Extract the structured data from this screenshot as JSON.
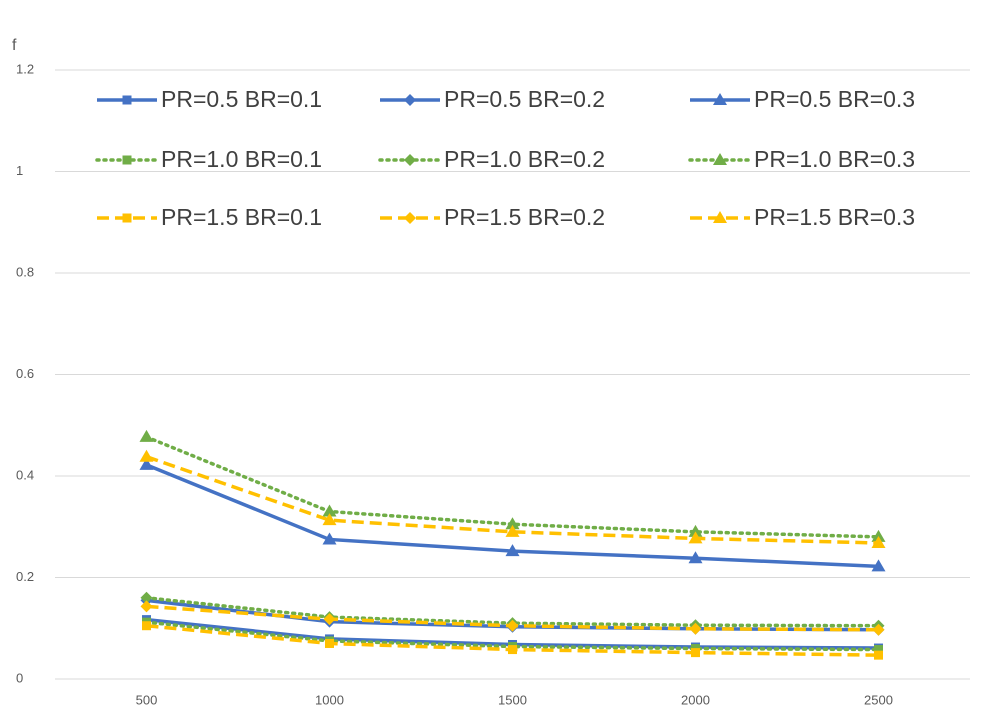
{
  "chart_data": {
    "type": "line",
    "y_label": "f",
    "categories": [
      "500",
      "1000",
      "1500",
      "2000",
      "2500"
    ],
    "ylim": [
      0,
      1.2
    ],
    "yticks": [
      0,
      0.2,
      0.4,
      0.6,
      0.8,
      1,
      1.2
    ],
    "grid": true,
    "series": [
      {
        "name": "PR=0.5 BR=0.1",
        "color": "#4472c4",
        "line_style": "solid",
        "marker": "square",
        "values": [
          0.117,
          0.079,
          0.068,
          0.063,
          0.061
        ]
      },
      {
        "name": "PR=0.5 BR=0.2",
        "color": "#4472c4",
        "line_style": "solid",
        "marker": "diamond",
        "values": [
          0.155,
          0.113,
          0.103,
          0.099,
          0.097
        ]
      },
      {
        "name": "PR=0.5 BR=0.3",
        "color": "#4472c4",
        "line_style": "solid",
        "marker": "triangle",
        "values": [
          0.422,
          0.275,
          0.252,
          0.238,
          0.222
        ]
      },
      {
        "name": "PR=1.0 BR=0.1",
        "color": "#70ad47",
        "line_style": "dotted",
        "marker": "square",
        "values": [
          0.112,
          0.075,
          0.064,
          0.06,
          0.058
        ]
      },
      {
        "name": "PR=1.0 BR=0.2",
        "color": "#70ad47",
        "line_style": "dotted",
        "marker": "diamond",
        "values": [
          0.16,
          0.122,
          0.11,
          0.106,
          0.105
        ]
      },
      {
        "name": "PR=1.0 BR=0.3",
        "color": "#70ad47",
        "line_style": "dotted",
        "marker": "triangle",
        "values": [
          0.477,
          0.33,
          0.305,
          0.29,
          0.28
        ]
      },
      {
        "name": "PR=1.5 BR=0.1",
        "color": "#ffc000",
        "line_style": "dashed",
        "marker": "square",
        "values": [
          0.105,
          0.07,
          0.058,
          0.052,
          0.047
        ]
      },
      {
        "name": "PR=1.5 BR=0.2",
        "color": "#ffc000",
        "line_style": "dashed",
        "marker": "diamond",
        "values": [
          0.143,
          0.118,
          0.105,
          0.099,
          0.097
        ]
      },
      {
        "name": "PR=1.5 BR=0.3",
        "color": "#ffc000",
        "line_style": "dashed",
        "marker": "triangle",
        "values": [
          0.438,
          0.313,
          0.29,
          0.277,
          0.268
        ]
      }
    ]
  }
}
